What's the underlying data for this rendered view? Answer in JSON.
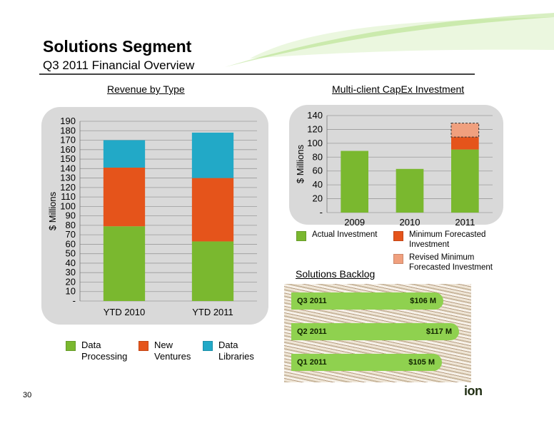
{
  "slide": {
    "title": "Solutions Segment",
    "subtitle": "Q3 2011 Financial Overview",
    "page_number": "30",
    "logo_text": "ion"
  },
  "sections": {
    "revenue_title": "Revenue by Type",
    "capex_title": "Multi-client CapEx Investment",
    "backlog_title": "Solutions Backlog"
  },
  "chart_data": [
    {
      "type": "bar",
      "title": "Revenue by Type",
      "ylabel": "$ Millions",
      "categories": [
        "YTD 2010",
        "YTD 2011"
      ],
      "stacked": true,
      "series": [
        {
          "name": "Data Processing",
          "values": [
            79,
            63
          ],
          "color": "#7ab82f"
        },
        {
          "name": "New Ventures",
          "values": [
            62,
            67
          ],
          "color": "#e5541b"
        },
        {
          "name": "Data Libraries",
          "values": [
            29,
            48
          ],
          "color": "#22a9c7"
        }
      ],
      "ylim": [
        0,
        190
      ],
      "yticks": [
        0,
        10,
        20,
        30,
        40,
        50,
        60,
        70,
        80,
        90,
        100,
        110,
        120,
        130,
        140,
        150,
        160,
        170,
        180,
        190
      ],
      "ytick_labels": [
        "-",
        "10",
        "20",
        "30",
        "40",
        "50",
        "60",
        "70",
        "80",
        "90",
        "100",
        "110",
        "120",
        "130",
        "140",
        "150",
        "160",
        "170",
        "180",
        "190"
      ],
      "grid": true,
      "legend_position": "bottom"
    },
    {
      "type": "bar",
      "title": "Multi-client CapEx Investment",
      "ylabel": "$ Millions",
      "categories": [
        "2009",
        "2010",
        "2011"
      ],
      "stacked": true,
      "series": [
        {
          "name": "Actual Investment",
          "values": [
            89,
            63,
            91
          ],
          "color": "#7ab82f"
        },
        {
          "name": "Minimum Forecasted Investment",
          "values": [
            0,
            0,
            18
          ],
          "color": "#e5541b"
        },
        {
          "name": "Revised Minimum Forecasted Investment",
          "values": [
            0,
            0,
            20
          ],
          "color": "#f0a07e"
        }
      ],
      "ylim": [
        0,
        140
      ],
      "yticks": [
        0,
        20,
        40,
        60,
        80,
        100,
        120,
        140
      ],
      "ytick_labels": [
        "-",
        "20",
        "40",
        "60",
        "80",
        "100",
        "120",
        "140"
      ],
      "grid": true,
      "legend_position": "bottom"
    }
  ],
  "revenue_legend": [
    {
      "label": "Data\nProcessing",
      "color": "#7ab82f"
    },
    {
      "label": "New\nVentures",
      "color": "#e5541b"
    },
    {
      "label": "Data\nLibraries",
      "color": "#22a9c7"
    }
  ],
  "capex_legend": [
    {
      "label": "Actual Investment",
      "color": "#7ab82f"
    },
    {
      "label": "Minimum Forecasted\nInvestment",
      "color": "#e5541b"
    },
    {
      "label": "Revised Minimum\nForecasted Investment",
      "color": "#f0a07e"
    }
  ],
  "backlog": {
    "items": [
      {
        "period": "Q3 2011",
        "value": "$106 M",
        "amount": 106
      },
      {
        "period": "Q2 2011",
        "value": "$117 M",
        "amount": 117
      },
      {
        "period": "Q1 2011",
        "value": "$105 M",
        "amount": 105
      }
    ]
  },
  "colors": {
    "panel": "#d9d9d9",
    "accent_green": "#8fd14f",
    "text": "#000000"
  }
}
